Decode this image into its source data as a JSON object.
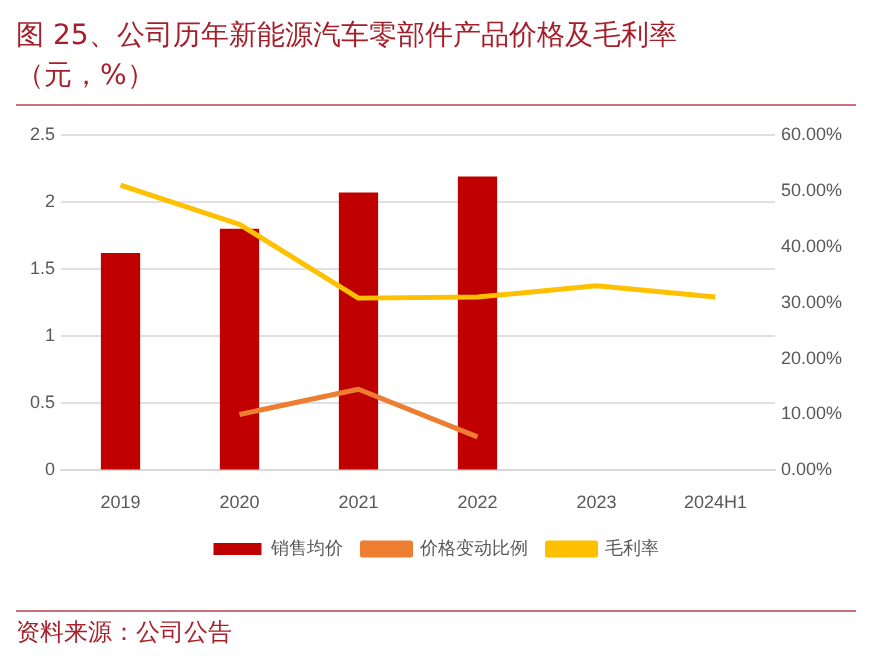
{
  "chart_data": {
    "type": "bar",
    "title": "图 25、公司历年新能源汽车零部件产品价格及毛利率",
    "subtitle": "（元，%）",
    "categories": [
      "2019",
      "2020",
      "2021",
      "2022",
      "2023",
      "2024H1"
    ],
    "series": [
      {
        "name": "销售均价",
        "color": "#c00000",
        "values": [
          1.62,
          1.8,
          2.07,
          2.19,
          null,
          null
        ]
      },
      {
        "name": "价格变动比例",
        "type": "line",
        "axis": "y2",
        "color": "#ed7d31",
        "values": [
          null,
          10,
          14.5,
          6,
          null,
          null
        ]
      },
      {
        "name": "毛利率",
        "type": "line",
        "axis": "y2",
        "color": "#ffc000",
        "values": [
          51,
          44,
          30.8,
          31,
          33,
          31
        ]
      }
    ],
    "ylim": [
      0,
      2.5
    ],
    "yticks": [
      0,
      0.5,
      1,
      1.5,
      2,
      2.5
    ],
    "y2lim": [
      0,
      60
    ],
    "y2ticks": [
      {
        "value": 0,
        "label": "0.00%"
      },
      {
        "value": 10,
        "label": "10.00%"
      },
      {
        "value": 20,
        "label": "20.00%"
      },
      {
        "value": 30,
        "label": "30.00%"
      },
      {
        "value": 40,
        "label": "40.00%"
      },
      {
        "value": 50,
        "label": "50.00%"
      },
      {
        "value": 60,
        "label": "60.00%"
      }
    ],
    "grid": "y",
    "legend": "bottom",
    "marker": "none",
    "annotations": [
      "资料来源：公司公告"
    ]
  }
}
